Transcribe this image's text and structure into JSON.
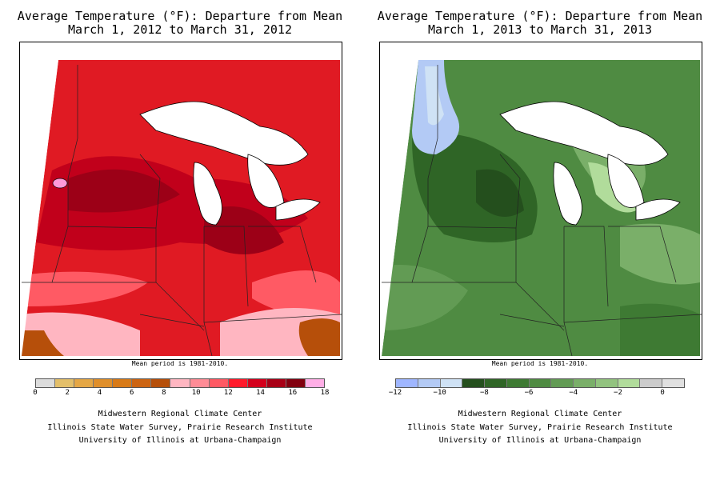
{
  "panels": [
    {
      "title_line1": "Average Temperature (°F): Departure from Mean",
      "title_line2": "March 1, 2012 to March 31, 2012",
      "mean_period": "Mean period is 1981-2010.",
      "legend": {
        "colors": [
          "#dcdcdc",
          "#e3bf6a",
          "#e5a745",
          "#e08f2a",
          "#d87a17",
          "#cc6412",
          "#b64f0a",
          "#ffb6c1",
          "#ff8c96",
          "#ff5a64",
          "#ff1a2b",
          "#d4001c",
          "#a80016",
          "#82000f",
          "#ffaee6"
        ],
        "ticks": [
          "0",
          "2",
          "4",
          "6",
          "8",
          "10",
          "12",
          "14",
          "16",
          "18"
        ]
      },
      "map_colors": {
        "base": "#e01a23",
        "warm": "#c1001b",
        "hot": "#9c0017",
        "cool": "#ff5a64",
        "pink": "#ffb6c1",
        "orange": "#b64f0a",
        "hotspot": "#ff9ad9"
      }
    },
    {
      "title_line1": "Average Temperature (°F): Departure from Mean",
      "title_line2": "March 1, 2013 to March 31, 2013",
      "mean_period": "Mean period is 1981-2010.",
      "legend": {
        "colors": [
          "#9fb6ff",
          "#b3caf5",
          "#cfe2f5",
          "#244f1d",
          "#2f6526",
          "#3e7a33",
          "#4f8b42",
          "#629b54",
          "#7aaf69",
          "#92c37f",
          "#b1dc9b",
          "#cccccc",
          "#e0e0e0"
        ],
        "ticks": [
          "−12",
          "−10",
          "−8",
          "−6",
          "−4",
          "−2",
          "0"
        ]
      },
      "map_colors": {
        "base": "#4f8b42",
        "dark": "#2f6526",
        "darker": "#244f1d",
        "light": "#7aaf69",
        "lighter": "#b1dc9b",
        "blue": "#b3caf5",
        "paleblue": "#cfe2f5"
      }
    }
  ],
  "credits": {
    "line1": "Midwestern Regional Climate Center",
    "line2": "Illinois State Water Survey, Prairie Research Institute",
    "line3": "University of Illinois at Urbana-Champaign"
  }
}
